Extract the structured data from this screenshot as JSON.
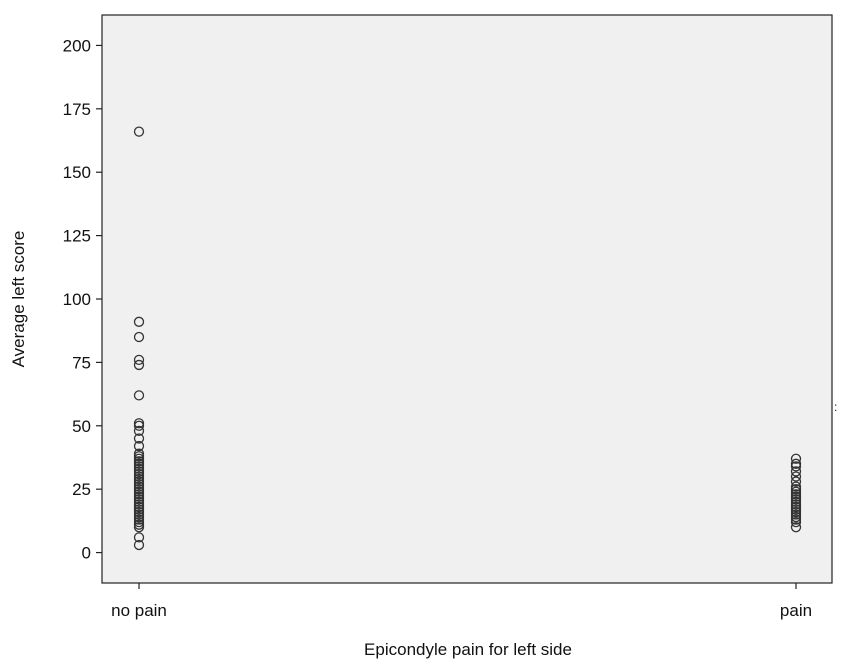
{
  "chart_data": {
    "type": "scatter",
    "title": "",
    "xlabel": "Epicondyle pain for left side",
    "ylabel": "Average left score",
    "categories": [
      "no pain",
      "pain"
    ],
    "ylim": [
      -12,
      212
    ],
    "yticks": [
      0,
      25,
      50,
      75,
      100,
      125,
      150,
      175,
      200
    ],
    "grid": false,
    "legend": "none",
    "marker": "open-circle",
    "colors": {
      "marker": "#333333",
      "plot_background": "#f0f0f0",
      "axes": "#222222"
    },
    "series": [
      {
        "category": "no pain",
        "values": [
          3,
          6,
          10,
          11,
          12,
          13,
          14,
          15,
          16,
          17,
          18,
          19,
          20,
          21,
          22,
          23,
          24,
          25,
          26,
          27,
          28,
          29,
          30,
          31,
          32,
          33,
          34,
          35,
          36,
          37,
          38,
          39,
          42,
          45,
          48,
          50,
          51,
          62,
          74,
          76,
          85,
          91,
          166
        ]
      },
      {
        "category": "pain",
        "values": [
          10,
          12,
          13,
          14,
          15,
          16,
          17,
          18,
          19,
          20,
          21,
          22,
          23,
          24,
          25,
          26,
          28,
          30,
          32,
          34,
          35,
          37
        ]
      }
    ]
  },
  "stray_glyph": ":"
}
